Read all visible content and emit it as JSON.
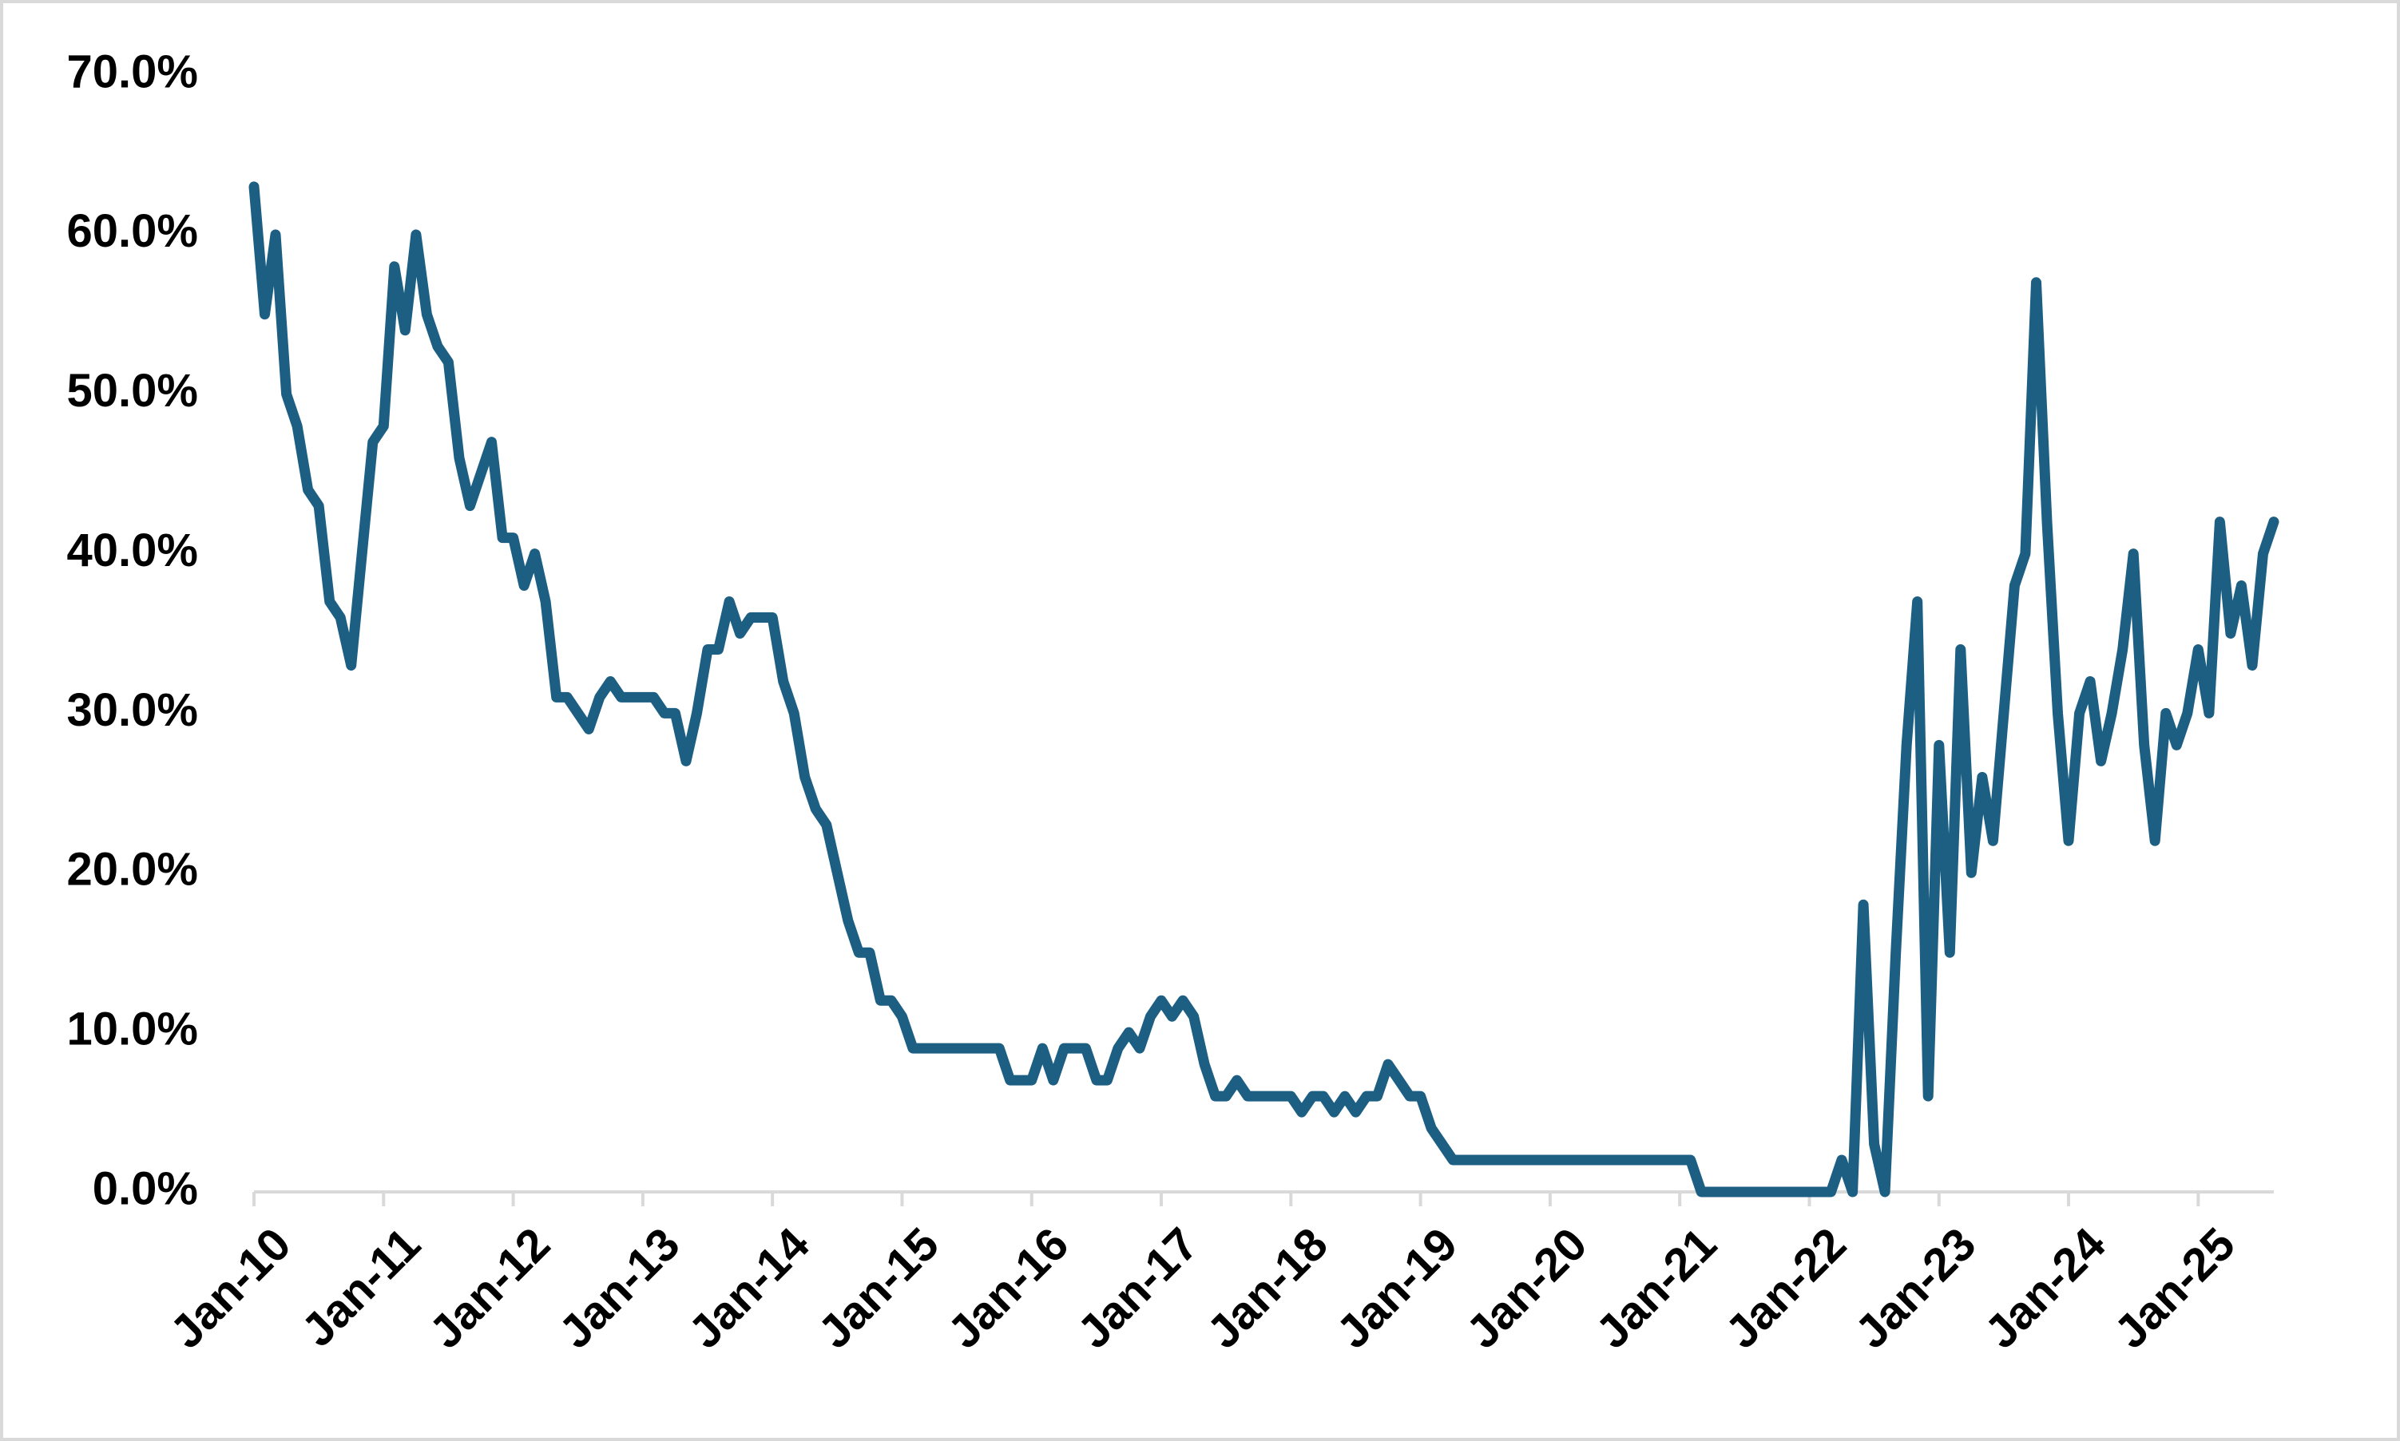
{
  "chart_data": {
    "type": "line",
    "x": [
      "2010-01",
      "2010-02",
      "2010-03",
      "2010-04",
      "2010-05",
      "2010-06",
      "2010-07",
      "2010-08",
      "2010-09",
      "2010-10",
      "2010-11",
      "2010-12",
      "2011-01",
      "2011-02",
      "2011-03",
      "2011-04",
      "2011-05",
      "2011-06",
      "2011-07",
      "2011-08",
      "2011-09",
      "2011-10",
      "2011-11",
      "2011-12",
      "2012-01",
      "2012-02",
      "2012-03",
      "2012-04",
      "2012-05",
      "2012-06",
      "2012-07",
      "2012-08",
      "2012-09",
      "2012-10",
      "2012-11",
      "2012-12",
      "2013-01",
      "2013-02",
      "2013-03",
      "2013-04",
      "2013-05",
      "2013-06",
      "2013-07",
      "2013-08",
      "2013-09",
      "2013-10",
      "2013-11",
      "2013-12",
      "2014-01",
      "2014-02",
      "2014-03",
      "2014-04",
      "2014-05",
      "2014-06",
      "2014-07",
      "2014-08",
      "2014-09",
      "2014-10",
      "2014-11",
      "2014-12",
      "2015-01",
      "2015-02",
      "2015-03",
      "2015-04",
      "2015-05",
      "2015-06",
      "2015-07",
      "2015-08",
      "2015-09",
      "2015-10",
      "2015-11",
      "2015-12",
      "2016-01",
      "2016-02",
      "2016-03",
      "2016-04",
      "2016-05",
      "2016-06",
      "2016-07",
      "2016-08",
      "2016-09",
      "2016-10",
      "2016-11",
      "2016-12",
      "2017-01",
      "2017-02",
      "2017-03",
      "2017-04",
      "2017-05",
      "2017-06",
      "2017-07",
      "2017-08",
      "2017-09",
      "2017-10",
      "2017-11",
      "2017-12",
      "2018-01",
      "2018-02",
      "2018-03",
      "2018-04",
      "2018-05",
      "2018-06",
      "2018-07",
      "2018-08",
      "2018-09",
      "2018-10",
      "2018-11",
      "2018-12",
      "2019-01",
      "2019-02",
      "2019-03",
      "2019-04",
      "2019-05",
      "2019-06",
      "2019-07",
      "2019-08",
      "2019-09",
      "2019-10",
      "2019-11",
      "2019-12",
      "2020-01",
      "2020-02",
      "2020-03",
      "2020-04",
      "2020-05",
      "2020-06",
      "2020-07",
      "2020-08",
      "2020-09",
      "2020-10",
      "2020-11",
      "2020-12",
      "2021-01",
      "2021-02",
      "2021-03",
      "2021-04",
      "2021-05",
      "2021-06",
      "2021-07",
      "2021-08",
      "2021-09",
      "2021-10",
      "2021-11",
      "2021-12",
      "2022-01",
      "2022-02",
      "2022-03",
      "2022-04",
      "2022-05",
      "2022-06",
      "2022-07",
      "2022-08",
      "2022-09",
      "2022-10",
      "2022-11",
      "2022-12",
      "2023-01",
      "2023-02",
      "2023-03",
      "2023-04",
      "2023-05",
      "2023-06",
      "2023-07",
      "2023-08",
      "2023-09",
      "2023-10",
      "2023-11",
      "2023-12",
      "2024-01",
      "2024-02",
      "2024-03",
      "2024-04",
      "2024-05",
      "2024-06",
      "2024-07",
      "2024-08",
      "2024-09",
      "2024-10",
      "2024-11",
      "2024-12",
      "2025-01",
      "2025-02",
      "2025-03",
      "2025-04",
      "2025-05",
      "2025-06",
      "2025-07",
      "2025-08"
    ],
    "series": [
      {
        "color": "#1c5f83",
        "values": [
          63,
          55,
          60,
          50,
          48,
          44,
          43,
          37,
          36,
          33,
          40,
          47,
          48,
          58,
          54,
          60,
          55,
          53,
          52,
          46,
          43,
          45,
          47,
          41,
          41,
          38,
          40,
          37,
          31,
          31,
          30,
          29,
          31,
          32,
          31,
          31,
          31,
          31,
          30,
          30,
          27,
          30,
          34,
          34,
          37,
          35,
          36,
          36,
          36,
          32,
          30,
          26,
          24,
          23,
          20,
          17,
          15,
          15,
          12,
          12,
          11,
          9,
          9,
          9,
          9,
          9,
          9,
          9,
          9,
          9,
          7,
          7,
          7,
          9,
          7,
          9,
          9,
          9,
          7,
          7,
          9,
          10,
          9,
          11,
          12,
          11,
          12,
          11,
          8,
          6,
          6,
          7,
          6,
          6,
          6,
          6,
          6,
          5,
          6,
          6,
          5,
          6,
          5,
          6,
          6,
          8,
          7,
          6,
          6,
          4,
          3,
          2,
          2,
          2,
          2,
          2,
          2,
          2,
          2,
          2,
          2,
          2,
          2,
          2,
          2,
          2,
          2,
          2,
          2,
          2,
          2,
          2,
          2,
          2,
          0,
          0,
          0,
          0,
          0,
          0,
          0,
          0,
          0,
          0,
          0,
          0,
          0,
          2,
          0,
          18,
          3,
          0,
          15,
          28,
          37,
          6,
          28,
          15,
          34,
          20,
          26,
          22,
          30,
          38,
          40,
          57,
          42,
          30,
          22,
          30,
          32,
          27,
          30,
          34,
          40,
          28,
          22,
          30,
          28,
          30,
          34,
          30,
          42,
          35,
          38,
          33,
          40,
          42
        ]
      }
    ],
    "xlim": [
      "2010-01",
      "2025-08"
    ],
    "xticks": [
      {
        "value": "2010-01",
        "label": "Jan-10"
      },
      {
        "value": "2011-01",
        "label": "Jan-11"
      },
      {
        "value": "2012-01",
        "label": "Jan-12"
      },
      {
        "value": "2013-01",
        "label": "Jan-13"
      },
      {
        "value": "2014-01",
        "label": "Jan-14"
      },
      {
        "value": "2015-01",
        "label": "Jan-15"
      },
      {
        "value": "2016-01",
        "label": "Jan-16"
      },
      {
        "value": "2017-01",
        "label": "Jan-17"
      },
      {
        "value": "2018-01",
        "label": "Jan-18"
      },
      {
        "value": "2019-01",
        "label": "Jan-19"
      },
      {
        "value": "2020-01",
        "label": "Jan-20"
      },
      {
        "value": "2021-01",
        "label": "Jan-21"
      },
      {
        "value": "2022-01",
        "label": "Jan-22"
      },
      {
        "value": "2023-01",
        "label": "Jan-23"
      },
      {
        "value": "2024-01",
        "label": "Jan-24"
      },
      {
        "value": "2025-01",
        "label": "Jan-25"
      }
    ],
    "ylim": [
      0,
      70
    ],
    "yticks": [
      {
        "value": 0,
        "label": "0.0%"
      },
      {
        "value": 10,
        "label": "10.0%"
      },
      {
        "value": 20,
        "label": "20.0%"
      },
      {
        "value": 30,
        "label": "30.0%"
      },
      {
        "value": 40,
        "label": "40.0%"
      },
      {
        "value": 50,
        "label": "50.0%"
      },
      {
        "value": 60,
        "label": "60.0%"
      },
      {
        "value": 70,
        "label": "70.0%"
      }
    ],
    "grid": false
  }
}
